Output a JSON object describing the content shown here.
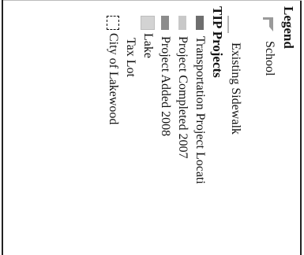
{
  "legend": {
    "title": "Legend",
    "items": [
      {
        "label": "School",
        "icon": "school-flag-icon"
      },
      {
        "label": "Existing Sidewalk",
        "icon": "sidewalk-line-icon"
      },
      {
        "label": "TIP Projects",
        "icon": "none"
      },
      {
        "label": "Transportation Project Locati",
        "icon": "dark-gray-swatch"
      },
      {
        "label": "Project Completed 2007",
        "icon": "light-gray-swatch"
      },
      {
        "label": "Project Added 2008",
        "icon": "medium-gray-swatch"
      },
      {
        "label": "Lake",
        "icon": "lake-swatch"
      },
      {
        "label": "Tax Lot",
        "icon": "none"
      },
      {
        "label": "City of Lakewood",
        "icon": "dashed-boundary-swatch"
      }
    ]
  },
  "colors": {
    "dark_gray": "#6e6e6e",
    "light_gray": "#c8c8c8",
    "medium_gray": "#8c8c8c",
    "lake": "#d3d3d3",
    "school": "#9a9a9a"
  }
}
